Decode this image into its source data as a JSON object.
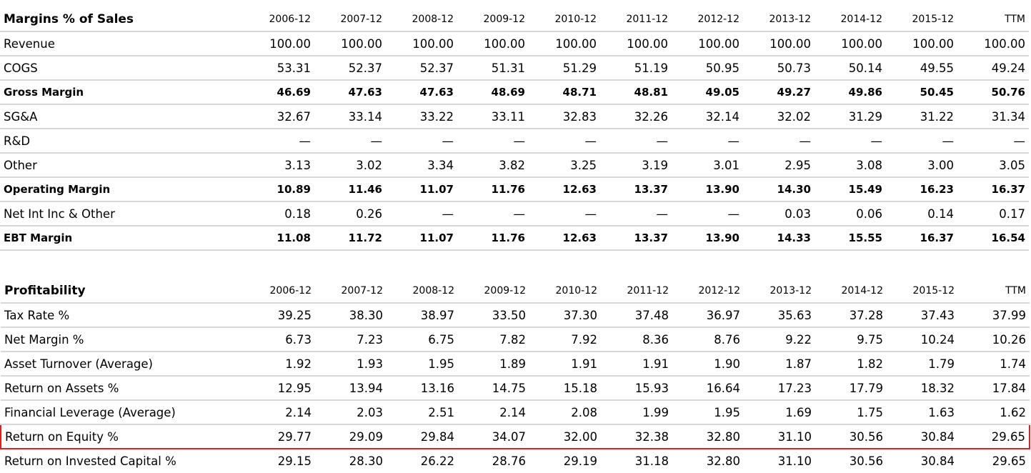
{
  "margins": {
    "title": "Margins % of Sales",
    "periods": [
      "2006-12",
      "2007-12",
      "2008-12",
      "2009-12",
      "2010-12",
      "2011-12",
      "2012-12",
      "2013-12",
      "2014-12",
      "2015-12",
      "TTM"
    ],
    "rows": [
      {
        "label": "Revenue",
        "bold": false,
        "values": [
          "100.00",
          "100.00",
          "100.00",
          "100.00",
          "100.00",
          "100.00",
          "100.00",
          "100.00",
          "100.00",
          "100.00",
          "100.00"
        ]
      },
      {
        "label": "COGS",
        "bold": false,
        "values": [
          "53.31",
          "52.37",
          "52.37",
          "51.31",
          "51.29",
          "51.19",
          "50.95",
          "50.73",
          "50.14",
          "49.55",
          "49.24"
        ]
      },
      {
        "label": "Gross Margin",
        "bold": true,
        "values": [
          "46.69",
          "47.63",
          "47.63",
          "48.69",
          "48.71",
          "48.81",
          "49.05",
          "49.27",
          "49.86",
          "50.45",
          "50.76"
        ]
      },
      {
        "label": "SG&A",
        "bold": false,
        "values": [
          "32.67",
          "33.14",
          "33.22",
          "33.11",
          "32.83",
          "32.26",
          "32.14",
          "32.02",
          "31.29",
          "31.22",
          "31.34"
        ]
      },
      {
        "label": "R&D",
        "bold": false,
        "values": [
          "—",
          "—",
          "—",
          "—",
          "—",
          "—",
          "—",
          "—",
          "—",
          "—",
          "—"
        ]
      },
      {
        "label": "Other",
        "bold": false,
        "values": [
          "3.13",
          "3.02",
          "3.34",
          "3.82",
          "3.25",
          "3.19",
          "3.01",
          "2.95",
          "3.08",
          "3.00",
          "3.05"
        ]
      },
      {
        "label": "Operating Margin",
        "bold": true,
        "values": [
          "10.89",
          "11.46",
          "11.07",
          "11.76",
          "12.63",
          "13.37",
          "13.90",
          "14.30",
          "15.49",
          "16.23",
          "16.37"
        ]
      },
      {
        "label": "Net Int Inc & Other",
        "bold": false,
        "values": [
          "0.18",
          "0.26",
          "—",
          "—",
          "—",
          "—",
          "—",
          "0.03",
          "0.06",
          "0.14",
          "0.17"
        ]
      },
      {
        "label": "EBT Margin",
        "bold": true,
        "values": [
          "11.08",
          "11.72",
          "11.07",
          "11.76",
          "12.63",
          "13.37",
          "13.90",
          "14.33",
          "15.55",
          "16.37",
          "16.54"
        ]
      }
    ]
  },
  "profitability": {
    "title": "Profitability",
    "periods": [
      "2006-12",
      "2007-12",
      "2008-12",
      "2009-12",
      "2010-12",
      "2011-12",
      "2012-12",
      "2013-12",
      "2014-12",
      "2015-12",
      "TTM"
    ],
    "highlight_color": "#e02020",
    "rows": [
      {
        "label": "Tax Rate %",
        "highlight": false,
        "values": [
          "39.25",
          "38.30",
          "38.97",
          "33.50",
          "37.30",
          "37.48",
          "36.97",
          "35.63",
          "37.28",
          "37.43",
          "37.99"
        ]
      },
      {
        "label": "Net Margin %",
        "highlight": false,
        "values": [
          "6.73",
          "7.23",
          "6.75",
          "7.82",
          "7.92",
          "8.36",
          "8.76",
          "9.22",
          "9.75",
          "10.24",
          "10.26"
        ]
      },
      {
        "label": "Asset Turnover (Average)",
        "highlight": false,
        "values": [
          "1.92",
          "1.93",
          "1.95",
          "1.89",
          "1.91",
          "1.91",
          "1.90",
          "1.87",
          "1.82",
          "1.79",
          "1.74"
        ]
      },
      {
        "label": "Return on Assets %",
        "highlight": false,
        "values": [
          "12.95",
          "13.94",
          "13.16",
          "14.75",
          "15.18",
          "15.93",
          "16.64",
          "17.23",
          "17.79",
          "18.32",
          "17.84"
        ]
      },
      {
        "label": "Financial Leverage (Average)",
        "highlight": false,
        "values": [
          "2.14",
          "2.03",
          "2.51",
          "2.14",
          "2.08",
          "1.99",
          "1.95",
          "1.69",
          "1.75",
          "1.63",
          "1.62"
        ]
      },
      {
        "label": "Return on Equity %",
        "highlight": true,
        "values": [
          "29.77",
          "29.09",
          "29.84",
          "34.07",
          "32.00",
          "32.38",
          "32.80",
          "31.10",
          "30.56",
          "30.84",
          "29.65"
        ]
      },
      {
        "label": "Return on Invested Capital %",
        "highlight": false,
        "values": [
          "29.15",
          "28.30",
          "26.22",
          "28.76",
          "29.19",
          "31.18",
          "32.80",
          "31.10",
          "30.56",
          "30.84",
          "29.65"
        ]
      }
    ]
  }
}
